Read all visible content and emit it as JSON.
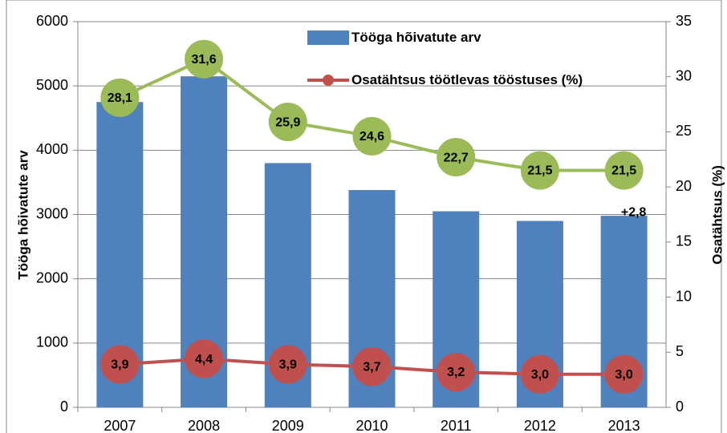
{
  "chart_data": {
    "type": "bar",
    "categories": [
      "2007",
      "2008",
      "2009",
      "2010",
      "2011",
      "2012",
      "2013"
    ],
    "series": [
      {
        "name": "Tööga hõivatute arv",
        "type": "bar",
        "color": "#4f81bd",
        "values": [
          4750,
          5150,
          3800,
          3380,
          3050,
          2900,
          2980
        ]
      },
      {
        "type": "line",
        "axis": "y2",
        "color": "#9bbb59",
        "values": [
          28.1,
          31.6,
          25.9,
          24.6,
          22.7,
          21.5,
          21.5
        ],
        "value_labels": [
          "28,1",
          "31,6",
          "25,9",
          "24,6",
          "22,7",
          "21,5",
          "21,5"
        ]
      },
      {
        "name": "Osatähtsus töötlevas tööstuses (%)",
        "type": "line",
        "axis": "y2",
        "color": "#c0504d",
        "values": [
          3.9,
          4.4,
          3.9,
          3.7,
          3.2,
          3.0,
          3.0
        ],
        "value_labels": [
          "3,9",
          "4,4",
          "3,9",
          "3,7",
          "3,2",
          "3,0",
          "3,0"
        ]
      }
    ],
    "annotation": "+2,8",
    "ylabel": "Tööga hõivatute arv",
    "y2label": "Osatähtsus (%)",
    "ylim": [
      0,
      6000
    ],
    "yticks": [
      0,
      1000,
      2000,
      3000,
      4000,
      5000,
      6000
    ],
    "y2lim": [
      0,
      35
    ],
    "y2ticks": [
      0,
      5,
      10,
      15,
      20,
      25,
      30,
      35
    ],
    "grid": true
  }
}
